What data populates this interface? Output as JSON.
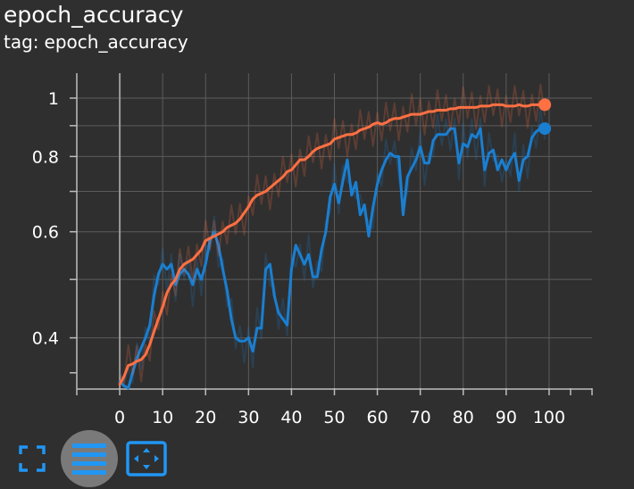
{
  "card": {
    "title": "epoch_accuracy",
    "tag_prefix": "tag:",
    "tag_value": "epoch_accuracy"
  },
  "toolbar": {
    "fullscreen_icon": "fullscreen-icon",
    "log_scale_icon": "list-lines-icon",
    "fit_domain_icon": "fit-domain-icon",
    "log_scale_active": true
  },
  "colors": {
    "background": "#2f2f2f",
    "grid": "#5c5c5c",
    "axis": "#bdbdbd",
    "text": "#ffffff",
    "series_blue": "#1a7fd1",
    "series_orange": "#ff7043",
    "toolbar_icon": "#2196f3",
    "toolbar_active_bg": "#7a7a7a"
  },
  "chart_data": {
    "type": "line",
    "title": "epoch_accuracy",
    "xlabel": "",
    "ylabel": "",
    "xlim": [
      -10,
      110
    ],
    "ylim": [
      0.33,
      1.1
    ],
    "yscale": "log",
    "grid": true,
    "legend": "none",
    "x_ticks": [
      0,
      10,
      20,
      30,
      40,
      50,
      60,
      70,
      80,
      90,
      100
    ],
    "y_ticks_labeled": [
      0.4,
      0.6,
      0.8,
      1
    ],
    "y_tick_labels": [
      "0.4",
      "0.6",
      "0.8",
      "1"
    ],
    "y_gridlines": [
      0.4,
      0.5,
      0.6,
      0.7,
      0.8,
      0.9,
      1
    ],
    "series": [
      {
        "color": "#1a7fd1",
        "raw_visible": true,
        "x": [
          0,
          1,
          2,
          3,
          4,
          5,
          6,
          7,
          8,
          9,
          10,
          11,
          12,
          13,
          14,
          15,
          16,
          17,
          18,
          19,
          20,
          21,
          22,
          23,
          24,
          25,
          26,
          27,
          28,
          29,
          30,
          31,
          32,
          33,
          34,
          35,
          36,
          37,
          38,
          39,
          40,
          41,
          42,
          43,
          44,
          45,
          46,
          47,
          48,
          49,
          50,
          51,
          52,
          53,
          54,
          55,
          56,
          57,
          58,
          59,
          60,
          61,
          62,
          63,
          64,
          65,
          66,
          67,
          68,
          69,
          70,
          71,
          72,
          73,
          74,
          75,
          76,
          77,
          78,
          79,
          80,
          81,
          82,
          83,
          84,
          85,
          86,
          87,
          88,
          89,
          90,
          91,
          92,
          93,
          94,
          95,
          96,
          97,
          98,
          99
        ],
        "values": [
          0.338,
          0.333,
          0.33,
          0.35,
          0.37,
          0.385,
          0.4,
          0.42,
          0.47,
          0.51,
          0.53,
          0.52,
          0.53,
          0.49,
          0.51,
          0.52,
          0.51,
          0.49,
          0.52,
          0.5,
          0.53,
          0.58,
          0.6,
          0.57,
          0.52,
          0.48,
          0.43,
          0.4,
          0.395,
          0.395,
          0.4,
          0.38,
          0.415,
          0.415,
          0.52,
          0.53,
          0.47,
          0.44,
          0.43,
          0.42,
          0.52,
          0.57,
          0.55,
          0.53,
          0.55,
          0.505,
          0.505,
          0.56,
          0.6,
          0.685,
          0.72,
          0.67,
          0.73,
          0.79,
          0.69,
          0.725,
          0.64,
          0.665,
          0.59,
          0.66,
          0.72,
          0.76,
          0.79,
          0.81,
          0.8,
          0.8,
          0.64,
          0.74,
          0.765,
          0.79,
          0.83,
          0.78,
          0.78,
          0.85,
          0.87,
          0.87,
          0.87,
          0.89,
          0.89,
          0.78,
          0.84,
          0.83,
          0.87,
          0.86,
          0.89,
          0.76,
          0.81,
          0.82,
          0.76,
          0.79,
          0.76,
          0.79,
          0.81,
          0.73,
          0.79,
          0.8,
          0.86,
          0.88,
          0.89,
          0.89
        ]
      },
      {
        "color": "#ff7043",
        "raw_visible": true,
        "x": [
          0,
          1,
          2,
          3,
          4,
          5,
          6,
          7,
          8,
          9,
          10,
          11,
          12,
          13,
          14,
          15,
          16,
          17,
          18,
          19,
          20,
          21,
          22,
          23,
          24,
          25,
          26,
          27,
          28,
          29,
          30,
          31,
          32,
          33,
          34,
          35,
          36,
          37,
          38,
          39,
          40,
          41,
          42,
          43,
          44,
          45,
          46,
          47,
          48,
          49,
          50,
          51,
          52,
          53,
          54,
          55,
          56,
          57,
          58,
          59,
          60,
          61,
          62,
          63,
          64,
          65,
          66,
          67,
          68,
          69,
          70,
          71,
          72,
          73,
          74,
          75,
          76,
          77,
          78,
          79,
          80,
          81,
          82,
          83,
          84,
          85,
          86,
          87,
          88,
          89,
          90,
          91,
          92,
          93,
          94,
          95,
          96,
          97,
          98,
          99
        ],
        "values": [
          0.335,
          0.345,
          0.36,
          0.362,
          0.366,
          0.368,
          0.375,
          0.39,
          0.41,
          0.43,
          0.45,
          0.475,
          0.49,
          0.5,
          0.52,
          0.53,
          0.535,
          0.54,
          0.55,
          0.56,
          0.58,
          0.585,
          0.59,
          0.595,
          0.6,
          0.61,
          0.615,
          0.62,
          0.63,
          0.645,
          0.66,
          0.68,
          0.69,
          0.695,
          0.7,
          0.71,
          0.72,
          0.73,
          0.74,
          0.755,
          0.76,
          0.775,
          0.79,
          0.79,
          0.8,
          0.815,
          0.825,
          0.83,
          0.835,
          0.84,
          0.855,
          0.86,
          0.865,
          0.87,
          0.87,
          0.875,
          0.885,
          0.89,
          0.895,
          0.905,
          0.91,
          0.905,
          0.91,
          0.92,
          0.925,
          0.925,
          0.93,
          0.935,
          0.94,
          0.94,
          0.94,
          0.945,
          0.95,
          0.95,
          0.955,
          0.955,
          0.955,
          0.96,
          0.96,
          0.965,
          0.965,
          0.965,
          0.965,
          0.965,
          0.97,
          0.97,
          0.97,
          0.975,
          0.975,
          0.975,
          0.97,
          0.97,
          0.97,
          0.975,
          0.97,
          0.97,
          0.975,
          0.975,
          0.975,
          0.975
        ]
      }
    ]
  }
}
